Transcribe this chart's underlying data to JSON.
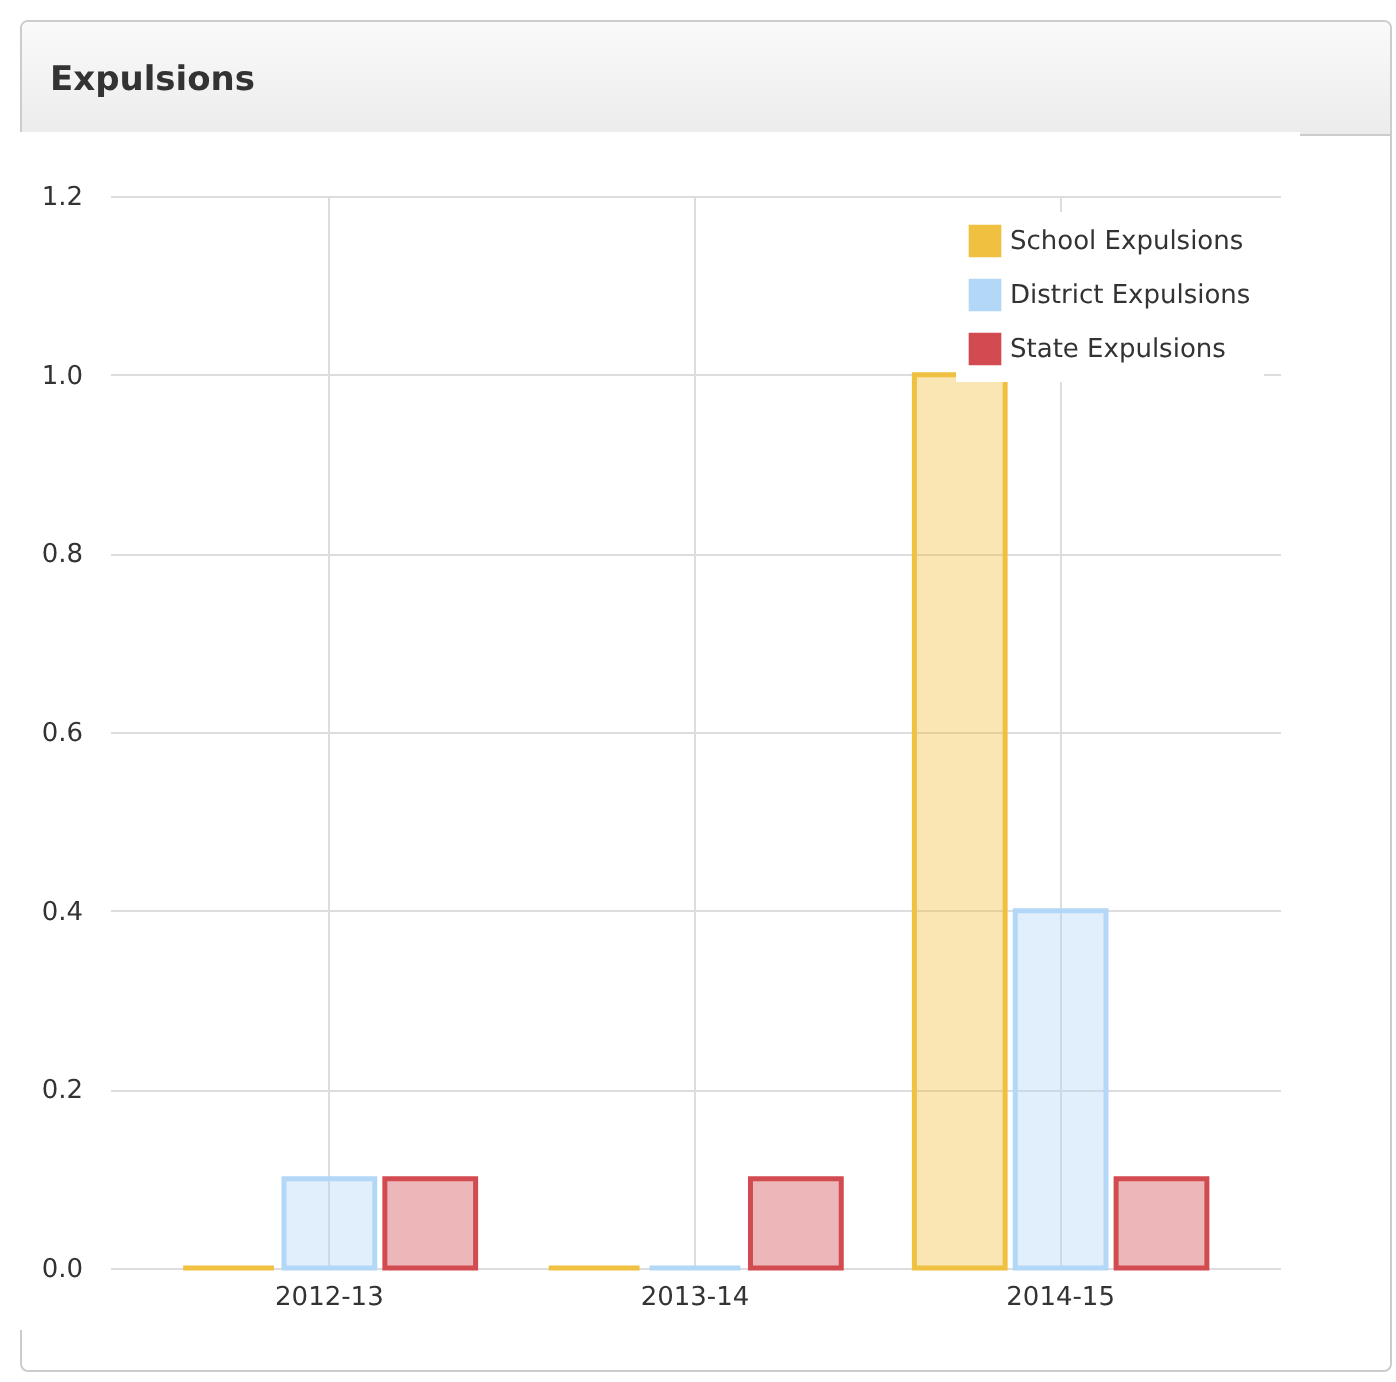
{
  "chart_data": {
    "type": "bar",
    "title": "Expulsions",
    "categories": [
      "2012-13",
      "2013-14",
      "2014-15"
    ],
    "series": [
      {
        "name": "School Expulsions",
        "color": "#f0c040",
        "values": [
          0,
          0,
          1.0
        ]
      },
      {
        "name": "District Expulsions",
        "color": "#b3d7f7",
        "values": [
          0.1,
          0,
          0.4
        ]
      },
      {
        "name": "State Expulsions",
        "color": "#d24b50",
        "values": [
          0.1,
          0.1,
          0.1
        ]
      }
    ],
    "ylim": [
      0,
      1.2
    ],
    "yticks": [
      {
        "value": 0,
        "label": "0.0"
      },
      {
        "value": 0.2,
        "label": "0.2"
      },
      {
        "value": 0.4,
        "label": "0.4"
      },
      {
        "value": 0.6,
        "label": "0.6"
      },
      {
        "value": 0.8,
        "label": "0.8"
      },
      {
        "value": 1.0,
        "label": "1.0"
      },
      {
        "value": 1.2,
        "label": "1.2"
      }
    ],
    "grid": true,
    "legend": "top right"
  }
}
